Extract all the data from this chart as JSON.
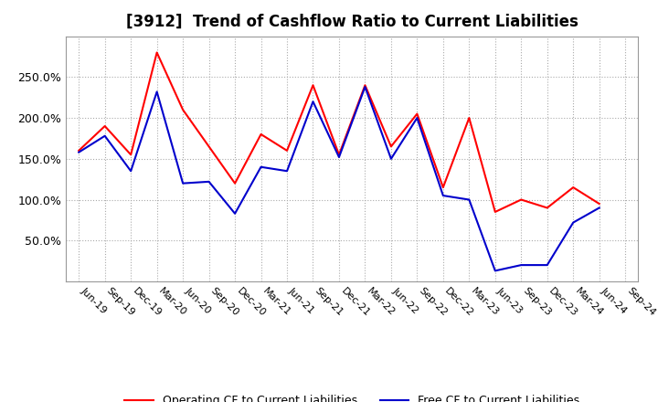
{
  "title": "[3912]  Trend of Cashflow Ratio to Current Liabilities",
  "x_labels": [
    "Jun-19",
    "Sep-19",
    "Dec-19",
    "Mar-20",
    "Jun-20",
    "Sep-20",
    "Dec-20",
    "Mar-21",
    "Jun-21",
    "Sep-21",
    "Dec-21",
    "Mar-22",
    "Jun-22",
    "Sep-22",
    "Dec-22",
    "Mar-23",
    "Jun-23",
    "Sep-23",
    "Dec-23",
    "Mar-24",
    "Jun-24",
    "Sep-24"
  ],
  "operating_cf": [
    1.6,
    1.9,
    1.55,
    2.8,
    2.1,
    1.65,
    1.2,
    1.8,
    1.6,
    2.4,
    1.55,
    2.4,
    1.65,
    2.05,
    1.15,
    2.0,
    0.85,
    1.0,
    0.9,
    1.15,
    0.95,
    null
  ],
  "free_cf": [
    1.58,
    1.78,
    1.35,
    2.32,
    1.2,
    1.22,
    0.83,
    1.4,
    1.35,
    2.2,
    1.52,
    2.38,
    1.5,
    2.0,
    1.05,
    1.0,
    0.13,
    0.2,
    0.2,
    0.72,
    0.9,
    null
  ],
  "ylim": [
    0,
    3.0
  ],
  "yticks": [
    0.5,
    1.0,
    1.5,
    2.0,
    2.5
  ],
  "ytick_labels": [
    "50.0%",
    "100.0%",
    "150.0%",
    "200.0%",
    "250.0%"
  ],
  "operating_color": "#FF0000",
  "free_color": "#0000CC",
  "legend_operating": "Operating CF to Current Liabilities",
  "legend_free": "Free CF to Current Liabilities",
  "background_color": "#FFFFFF",
  "plot_bg_color": "#FFFFFF",
  "grid_color": "#AAAAAA",
  "title_fontsize": 12,
  "tick_fontsize": 8,
  "legend_fontsize": 9
}
